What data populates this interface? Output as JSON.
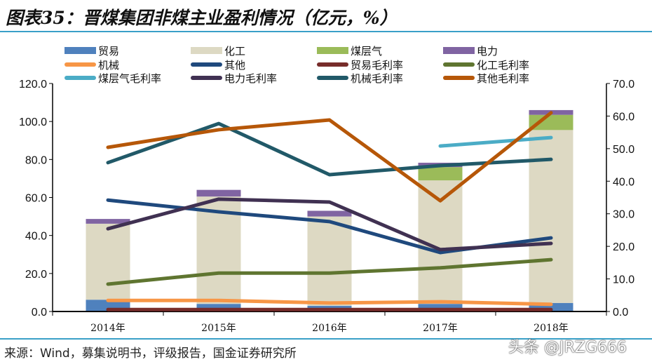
{
  "title": "图表35：晋煤集团非煤主业盈利情况（亿元，%）",
  "source": "来源：Wind，募集说明书，评级报告，国金证券研究所",
  "watermark": "头条 @JRZG666",
  "chart_data": {
    "type": "bar+line",
    "categories": [
      "2014年",
      "2015年",
      "2016年",
      "2017年",
      "2018年"
    ],
    "left_axis": {
      "ylim": [
        0,
        120
      ],
      "ticks": [
        "0.0",
        "20.0",
        "40.0",
        "60.0",
        "80.0",
        "100.0",
        "120.0"
      ]
    },
    "right_axis": {
      "ylim": [
        0,
        70
      ],
      "ticks": [
        "0.0",
        "10.0",
        "20.0",
        "30.0",
        "40.0",
        "50.0",
        "60.0",
        "70.0"
      ]
    },
    "grid": false,
    "legend": "top",
    "bars": [
      {
        "name": "贸易",
        "color": "#4f81bd",
        "values": [
          6.2,
          4,
          3,
          4,
          4.5
        ]
      },
      {
        "name": "化工",
        "color": "#ddd9c3",
        "values": [
          40,
          56.5,
          47,
          65,
          91
        ]
      },
      {
        "name": "煤层气",
        "color": "#9bbb59",
        "values": [
          0,
          0,
          0,
          7,
          8
        ]
      },
      {
        "name": "电力",
        "color": "#8064a2",
        "values": [
          2.5,
          3.5,
          3,
          2.3,
          2.5
        ]
      }
    ],
    "lines": [
      {
        "name": "机械",
        "color": "#f79646",
        "values": [
          3.4,
          3.4,
          2.6,
          3,
          2.2
        ]
      },
      {
        "name": "其他",
        "color": "#1f497d",
        "values": [
          34.2,
          30.6,
          27.6,
          18.1,
          22.6
        ]
      },
      {
        "name": "贸易毛利率",
        "color": "#772c2a",
        "values": [
          0.6,
          0.6,
          0.6,
          0.6,
          0.6
        ]
      },
      {
        "name": "化工毛利率",
        "color": "#5f7530",
        "values": [
          8.4,
          11.8,
          11.8,
          13.4,
          15.9
        ]
      },
      {
        "name": "煤层气毛利率",
        "color": "#4bacc6",
        "values": [
          null,
          null,
          null,
          50.8,
          53.4
        ]
      },
      {
        "name": "电力毛利率",
        "color": "#403152",
        "values": [
          25.4,
          34.5,
          33.6,
          19,
          20.9
        ]
      },
      {
        "name": "机械毛利率",
        "color": "#215968",
        "values": [
          45.7,
          57.7,
          42,
          44.8,
          46.7
        ]
      },
      {
        "name": "其他毛利率",
        "color": "#b65708",
        "values": [
          50.4,
          55.8,
          58.8,
          34,
          61
        ]
      }
    ],
    "legend_order": [
      "贸易",
      "化工",
      "煤层气",
      "电力",
      "机械",
      "其他",
      "贸易毛利率",
      "化工毛利率",
      "煤层气毛利率",
      "电力毛利率",
      "机械毛利率",
      "其他毛利率"
    ]
  }
}
